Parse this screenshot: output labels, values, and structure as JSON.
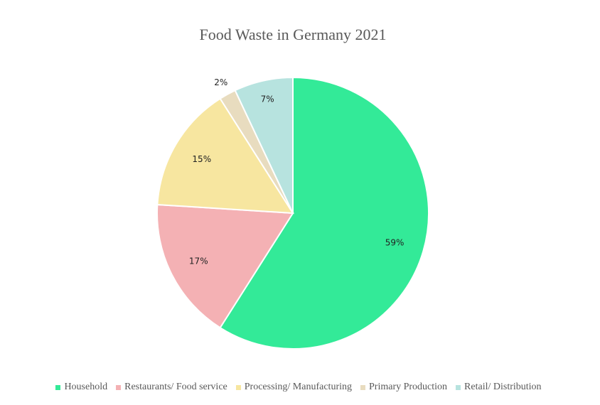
{
  "chart_data": {
    "type": "pie",
    "title": "Food Waste in Germany 2021",
    "legend_position": "bottom",
    "slices": [
      {
        "label": "Household",
        "value": 59,
        "display": "59%",
        "color": "#33ea98"
      },
      {
        "label": "Restaurants/ Food service",
        "value": 17,
        "display": "17%",
        "color": "#f4b1b4"
      },
      {
        "label": "Processing/ Manufacturing",
        "value": 15,
        "display": "15%",
        "color": "#f7e6a0"
      },
      {
        "label": "Primary Production",
        "value": 2,
        "display": "2%",
        "color": "#e8dcbf"
      },
      {
        "label": "Retail/ Distribution",
        "value": 7,
        "display": "7%",
        "color": "#b7e3df"
      }
    ]
  }
}
